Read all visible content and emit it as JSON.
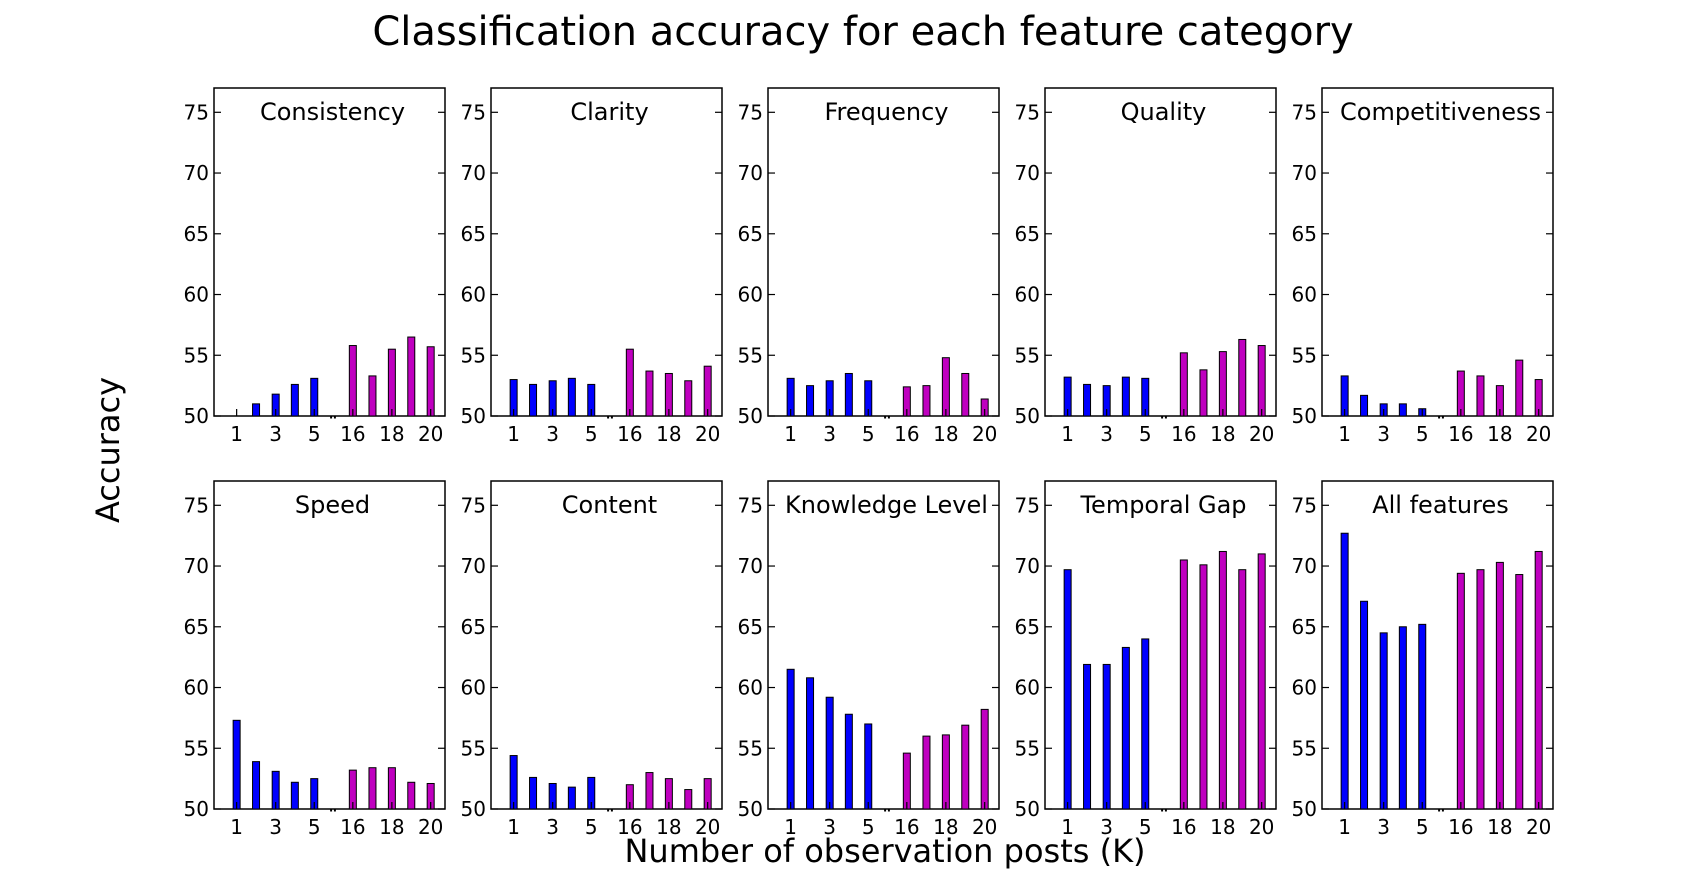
{
  "figure": {
    "title": "Classification accuracy for each feature category",
    "xlabel": "Number of observation posts (K)",
    "ylabel": "Accuracy"
  },
  "colors": {
    "first_group": "#0000ff",
    "second_group": "#bf00bf",
    "edge": "#000000"
  },
  "chart_data": [
    {
      "type": "bar",
      "title": "Consistency",
      "ylim": [
        50,
        77
      ],
      "yticks": [
        50,
        55,
        60,
        65,
        70,
        75
      ],
      "x": [
        1,
        2,
        3,
        4,
        5,
        16,
        17,
        18,
        19,
        20
      ],
      "xtick_labels": [
        "1",
        "3",
        "5",
        "16",
        "18",
        "20"
      ],
      "xtick_positions": [
        1,
        3,
        5,
        16,
        18,
        20
      ],
      "break_marker": "¨",
      "series": [
        {
          "values": [
            50.0,
            51.0,
            51.8,
            52.6,
            53.1,
            55.8,
            53.3,
            55.5,
            56.5,
            55.7
          ]
        }
      ]
    },
    {
      "type": "bar",
      "title": "Clarity",
      "ylim": [
        50,
        77
      ],
      "yticks": [
        50,
        55,
        60,
        65,
        70,
        75
      ],
      "x": [
        1,
        2,
        3,
        4,
        5,
        16,
        17,
        18,
        19,
        20
      ],
      "xtick_labels": [
        "1",
        "3",
        "5",
        "16",
        "18",
        "20"
      ],
      "xtick_positions": [
        1,
        3,
        5,
        16,
        18,
        20
      ],
      "break_marker": "¨",
      "series": [
        {
          "values": [
            53.0,
            52.6,
            52.9,
            53.1,
            52.6,
            55.5,
            53.7,
            53.5,
            52.9,
            54.1
          ]
        }
      ]
    },
    {
      "type": "bar",
      "title": "Frequency",
      "ylim": [
        50,
        77
      ],
      "yticks": [
        50,
        55,
        60,
        65,
        70,
        75
      ],
      "x": [
        1,
        2,
        3,
        4,
        5,
        16,
        17,
        18,
        19,
        20
      ],
      "xtick_labels": [
        "1",
        "3",
        "5",
        "16",
        "18",
        "20"
      ],
      "xtick_positions": [
        1,
        3,
        5,
        16,
        18,
        20
      ],
      "break_marker": "¨",
      "series": [
        {
          "values": [
            53.1,
            52.5,
            52.9,
            53.5,
            52.9,
            52.4,
            52.5,
            54.8,
            53.5,
            51.4
          ]
        }
      ]
    },
    {
      "type": "bar",
      "title": "Quality",
      "ylim": [
        50,
        77
      ],
      "yticks": [
        50,
        55,
        60,
        65,
        70,
        75
      ],
      "x": [
        1,
        2,
        3,
        4,
        5,
        16,
        17,
        18,
        19,
        20
      ],
      "xtick_labels": [
        "1",
        "3",
        "5",
        "16",
        "18",
        "20"
      ],
      "xtick_positions": [
        1,
        3,
        5,
        16,
        18,
        20
      ],
      "break_marker": "¨",
      "series": [
        {
          "values": [
            53.2,
            52.6,
            52.5,
            53.2,
            53.1,
            55.2,
            53.8,
            55.3,
            56.3,
            55.8
          ]
        }
      ]
    },
    {
      "type": "bar",
      "title": "Competitiveness",
      "ylim": [
        50,
        77
      ],
      "yticks": [
        50,
        55,
        60,
        65,
        70,
        75
      ],
      "x": [
        1,
        2,
        3,
        4,
        5,
        16,
        17,
        18,
        19,
        20
      ],
      "xtick_labels": [
        "1",
        "3",
        "5",
        "16",
        "18",
        "20"
      ],
      "xtick_positions": [
        1,
        3,
        5,
        16,
        18,
        20
      ],
      "break_marker": "¨",
      "series": [
        {
          "values": [
            53.3,
            51.7,
            51.0,
            51.0,
            50.6,
            53.7,
            53.3,
            52.5,
            54.6,
            53.0
          ]
        }
      ]
    },
    {
      "type": "bar",
      "title": "Speed",
      "ylim": [
        50,
        77
      ],
      "yticks": [
        50,
        55,
        60,
        65,
        70,
        75
      ],
      "x": [
        1,
        2,
        3,
        4,
        5,
        16,
        17,
        18,
        19,
        20
      ],
      "xtick_labels": [
        "1",
        "3",
        "5",
        "16",
        "18",
        "20"
      ],
      "xtick_positions": [
        1,
        3,
        5,
        16,
        18,
        20
      ],
      "break_marker": "¨",
      "series": [
        {
          "values": [
            57.3,
            53.9,
            53.1,
            52.2,
            52.5,
            53.2,
            53.4,
            53.4,
            52.2,
            52.1
          ]
        }
      ]
    },
    {
      "type": "bar",
      "title": "Content",
      "ylim": [
        50,
        77
      ],
      "yticks": [
        50,
        55,
        60,
        65,
        70,
        75
      ],
      "x": [
        1,
        2,
        3,
        4,
        5,
        16,
        17,
        18,
        19,
        20
      ],
      "xtick_labels": [
        "1",
        "3",
        "5",
        "16",
        "18",
        "20"
      ],
      "xtick_positions": [
        1,
        3,
        5,
        16,
        18,
        20
      ],
      "break_marker": "¨",
      "series": [
        {
          "values": [
            54.4,
            52.6,
            52.1,
            51.8,
            52.6,
            52.0,
            53.0,
            52.5,
            51.6,
            52.5
          ]
        }
      ]
    },
    {
      "type": "bar",
      "title": "Knowledge Level",
      "ylim": [
        50,
        77
      ],
      "yticks": [
        50,
        55,
        60,
        65,
        70,
        75
      ],
      "x": [
        1,
        2,
        3,
        4,
        5,
        16,
        17,
        18,
        19,
        20
      ],
      "xtick_labels": [
        "1",
        "3",
        "5",
        "16",
        "18",
        "20"
      ],
      "xtick_positions": [
        1,
        3,
        5,
        16,
        18,
        20
      ],
      "break_marker": "¨",
      "series": [
        {
          "values": [
            61.5,
            60.8,
            59.2,
            57.8,
            57.0,
            54.6,
            56.0,
            56.1,
            56.9,
            58.2
          ]
        }
      ]
    },
    {
      "type": "bar",
      "title": "Temporal Gap",
      "ylim": [
        50,
        77
      ],
      "yticks": [
        50,
        55,
        60,
        65,
        70,
        75
      ],
      "x": [
        1,
        2,
        3,
        4,
        5,
        16,
        17,
        18,
        19,
        20
      ],
      "xtick_labels": [
        "1",
        "3",
        "5",
        "16",
        "18",
        "20"
      ],
      "xtick_positions": [
        1,
        3,
        5,
        16,
        18,
        20
      ],
      "break_marker": "¨",
      "series": [
        {
          "values": [
            69.7,
            61.9,
            61.9,
            63.3,
            64.0,
            70.5,
            70.1,
            71.2,
            69.7,
            71.0
          ]
        }
      ]
    },
    {
      "type": "bar",
      "title": "All features",
      "ylim": [
        50,
        77
      ],
      "yticks": [
        50,
        55,
        60,
        65,
        70,
        75
      ],
      "x": [
        1,
        2,
        3,
        4,
        5,
        16,
        17,
        18,
        19,
        20
      ],
      "xtick_labels": [
        "1",
        "3",
        "5",
        "16",
        "18",
        "20"
      ],
      "xtick_positions": [
        1,
        3,
        5,
        16,
        18,
        20
      ],
      "break_marker": "¨",
      "series": [
        {
          "values": [
            72.7,
            67.1,
            64.5,
            65.0,
            65.2,
            69.4,
            69.7,
            70.3,
            69.3,
            71.2
          ]
        }
      ]
    }
  ]
}
